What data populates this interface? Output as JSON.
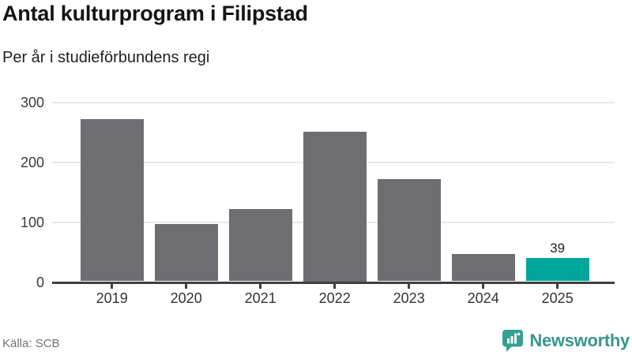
{
  "header": {
    "title": "Antal kulturprogram i Filipstad",
    "subtitle": "Per år i studieförbundens regi"
  },
  "footer": {
    "source": "Källa: SCB",
    "brand": "Newsworthy"
  },
  "icons": {
    "brand_icon": "newsworthy-speech-bubble-bar-chart-icon"
  },
  "colors": {
    "bar_default": "#6e6d72",
    "bar_highlight": "#00a69c",
    "gridline": "#e8e8e8",
    "axis": "#3f3f42",
    "brand_teal": "#38968e",
    "brand_icon_teal": "#35a096"
  },
  "chart_data": {
    "type": "bar",
    "title": "Antal kulturprogram i Filipstad",
    "subtitle": "Per år i studieförbundens regi",
    "categories": [
      "2019",
      "2020",
      "2021",
      "2022",
      "2023",
      "2024",
      "2025"
    ],
    "values": [
      270,
      95,
      120,
      250,
      170,
      46,
      39
    ],
    "value_labels": [
      null,
      null,
      null,
      null,
      null,
      null,
      "39"
    ],
    "xlabel": "",
    "ylabel": "",
    "ylim": [
      0,
      300
    ],
    "y_ticks": [
      0,
      100,
      200,
      300
    ],
    "grid": "horizontal",
    "legend": "none",
    "bar_color": "#6e6d72",
    "highlight_index": 6,
    "highlight_color": "#00a69c"
  }
}
